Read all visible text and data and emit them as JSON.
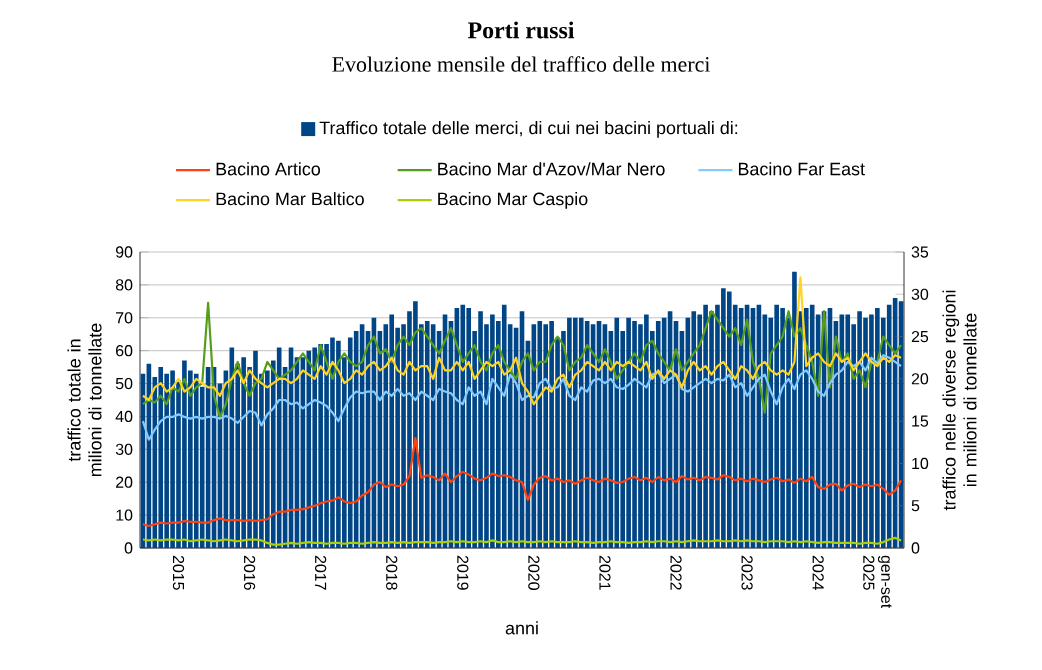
{
  "chart_data": {
    "type": "bar",
    "title": "Porti russi",
    "subtitle": "Evoluzione mensile del traffico delle merci",
    "xlabel": "anni",
    "ylabel": "traffico totale in milioni di tonnellate",
    "y2label": "traffico nelle diverse regioni in milioni di tonnellate",
    "categories": [
      null,
      null,
      null,
      null,
      null,
      null,
      "2015",
      null,
      null,
      null,
      null,
      null,
      null,
      null,
      null,
      null,
      null,
      null,
      "2016",
      null,
      null,
      null,
      null,
      null,
      null,
      null,
      null,
      null,
      null,
      null,
      "2017",
      null,
      null,
      null,
      null,
      null,
      null,
      null,
      null,
      null,
      null,
      null,
      "2018",
      null,
      null,
      null,
      null,
      null,
      null,
      null,
      null,
      null,
      null,
      null,
      "2019",
      null,
      null,
      null,
      null,
      null,
      null,
      null,
      null,
      null,
      null,
      null,
      "2020",
      null,
      null,
      null,
      null,
      null,
      null,
      null,
      null,
      null,
      null,
      null,
      "2021",
      null,
      null,
      null,
      null,
      null,
      null,
      null,
      null,
      null,
      null,
      null,
      "2022",
      null,
      null,
      null,
      null,
      null,
      null,
      null,
      null,
      null,
      null,
      null,
      "2023",
      null,
      null,
      null,
      null,
      null,
      null,
      null,
      null,
      null,
      null,
      null,
      "2024",
      null,
      null,
      null,
      null,
      null,
      null,
      null,
      null,
      null,
      "gen-set 2025",
      null,
      null,
      null,
      null
    ],
    "series": [
      {
        "name": "Traffico totale delle merci, di cui nei bacini portuali di:",
        "axis": "y",
        "color": "#004586",
        "values": [
          53,
          56,
          52,
          55,
          53,
          54,
          51,
          57,
          54,
          53,
          49,
          55,
          55,
          50,
          54,
          61,
          56,
          58,
          55,
          60,
          53,
          54,
          57,
          61,
          55,
          61,
          58,
          58,
          60,
          61,
          62,
          62,
          64,
          63,
          58,
          64,
          66,
          68,
          66,
          70,
          66,
          68,
          71,
          67,
          68,
          72,
          75,
          68,
          69,
          68,
          66,
          71,
          69,
          73,
          74,
          73,
          66,
          72,
          68,
          71,
          69,
          74,
          68,
          67,
          72,
          63,
          68,
          69,
          68,
          69,
          64,
          66,
          70,
          70,
          70,
          69,
          68,
          69,
          68,
          66,
          70,
          66,
          70,
          69,
          68,
          71,
          66,
          69,
          70,
          72,
          69,
          66,
          70,
          72,
          71,
          74,
          72,
          74,
          79,
          78,
          74,
          73,
          74,
          73,
          74,
          71,
          70,
          74,
          73,
          70,
          84,
          72,
          73,
          74,
          71,
          72,
          73,
          69,
          71,
          71,
          68,
          72,
          70,
          71,
          73,
          70,
          74,
          76,
          75
        ]
      },
      {
        "name": "Bacino Artico",
        "type": "line",
        "axis": "y2",
        "color": "#ff420e",
        "values": [
          2.8,
          2.6,
          2.8,
          3.0,
          2.9,
          3.0,
          3.0,
          3.2,
          3.1,
          3.1,
          3.0,
          3.0,
          3.3,
          3.5,
          3.3,
          3.3,
          3.3,
          3.2,
          3.3,
          3.2,
          3.3,
          3.4,
          4.0,
          4.3,
          4.3,
          4.5,
          4.5,
          4.6,
          4.8,
          5.0,
          5.3,
          5.5,
          5.6,
          6.0,
          5.5,
          5.3,
          5.5,
          6.2,
          6.6,
          7.5,
          7.8,
          7.2,
          7.5,
          7.3,
          7.5,
          8.5,
          13.0,
          8.3,
          8.6,
          8.4,
          8.0,
          8.8,
          7.8,
          8.5,
          9.0,
          8.7,
          8.2,
          8.0,
          8.3,
          8.8,
          8.5,
          8.6,
          8.4,
          8.0,
          7.8,
          5.7,
          7.5,
          8.3,
          8.5,
          8.0,
          8.2,
          7.8,
          8.0,
          7.6,
          8.0,
          8.3,
          8.0,
          7.8,
          8.2,
          8.0,
          7.7,
          7.8,
          8.2,
          8.4,
          8.0,
          8.3,
          7.8,
          8.4,
          8.0,
          8.2,
          7.8,
          8.5,
          8.1,
          8.3,
          8.0,
          8.4,
          8.3,
          8.1,
          8.6,
          8.4,
          8.0,
          8.2,
          7.9,
          8.2,
          8.0,
          7.8,
          8.1,
          8.3,
          7.9,
          8.1,
          7.7,
          8.2,
          7.9,
          8.4,
          7.2,
          7.0,
          7.5,
          7.6,
          6.8,
          7.4,
          7.6,
          7.2,
          7.5,
          7.3,
          7.5,
          7.0,
          6.3,
          6.8,
          8.0
        ]
      },
      {
        "name": "Bacino Mar d'Azov/Mar Nero",
        "type": "line",
        "axis": "y2",
        "color": "#579d1c",
        "values": [
          17,
          17.5,
          17.2,
          18,
          17,
          19,
          18.5,
          20,
          18,
          19,
          19.5,
          29,
          18,
          15.5,
          17,
          20,
          22,
          19.5,
          18,
          19.5,
          20,
          22,
          21,
          20,
          20.5,
          21,
          22,
          23,
          22,
          21,
          24,
          22,
          20,
          22,
          23,
          22,
          21.5,
          22,
          24,
          25,
          23,
          23.5,
          22,
          24,
          25,
          24,
          25.5,
          26,
          25,
          24,
          23,
          24.5,
          26,
          24,
          22,
          23,
          24,
          22,
          21,
          23,
          24,
          22,
          21,
          20,
          22,
          23,
          21,
          22,
          22,
          24,
          25,
          24,
          21,
          22,
          22.5,
          24,
          23,
          22,
          23.5,
          22,
          20,
          21,
          22,
          23,
          22,
          24,
          24.5,
          23,
          22,
          21,
          23.5,
          21,
          22,
          23,
          24,
          26,
          28,
          27,
          26,
          25,
          26,
          24,
          27,
          22,
          20,
          16,
          23,
          24,
          25,
          28,
          25,
          26,
          24,
          22,
          18,
          28,
          19,
          25,
          22,
          23,
          20,
          21,
          19,
          22,
          22,
          25,
          24,
          23,
          24
        ]
      },
      {
        "name": "Bacino Far East",
        "type": "line",
        "axis": "y2",
        "color": "#83caff",
        "values": [
          15,
          12.8,
          14,
          15,
          15.5,
          15.5,
          15.8,
          15.5,
          15.3,
          15.5,
          15.3,
          15.5,
          15.5,
          15.3,
          15.6,
          15.3,
          14.8,
          15.5,
          16.2,
          16,
          14.5,
          15.8,
          16.5,
          17.5,
          17.5,
          17,
          17.2,
          16.5,
          17,
          17.5,
          17.2,
          16.8,
          16,
          15,
          16.5,
          17.8,
          18.5,
          18.3,
          18.5,
          18.5,
          17.5,
          18.5,
          18,
          18.8,
          18,
          18.3,
          17.5,
          18.5,
          18,
          17.5,
          18.8,
          18.5,
          18.3,
          17.5,
          17,
          19,
          18,
          18.5,
          17,
          20,
          19,
          18,
          20.5,
          19.5,
          17.5,
          18,
          17.8,
          19.5,
          20,
          18.8,
          19,
          20,
          18,
          17.5,
          19,
          18.5,
          19.8,
          20,
          19.5,
          20,
          19,
          18.8,
          19.3,
          20,
          19.5,
          19,
          20.5,
          20.8,
          19.5,
          20,
          20.5,
          18.8,
          18.5,
          19,
          19.5,
          20,
          19.5,
          20,
          19.8,
          20.5,
          19,
          19.5,
          18,
          19,
          20,
          20.5,
          18.5,
          17,
          19,
          20,
          18.8,
          20.5,
          21,
          20,
          18.5,
          18,
          19.5,
          20.5,
          21,
          22,
          21.5,
          22,
          21,
          22.5,
          21.8,
          22.8,
          22.5,
          22,
          21.5
        ]
      },
      {
        "name": "Bacino Mar Baltico",
        "type": "line",
        "axis": "y2",
        "color": "#ffd320",
        "values": [
          18,
          17.5,
          19,
          19.5,
          18.5,
          19,
          20,
          18.5,
          19,
          20,
          19.5,
          19,
          19,
          18,
          19.5,
          20,
          21,
          19.5,
          21,
          20,
          19.5,
          19,
          19.5,
          20,
          20,
          19.5,
          20,
          21,
          20.5,
          20,
          21.5,
          20.5,
          22,
          21,
          19.5,
          20,
          21,
          20.5,
          21.5,
          22,
          21,
          21.5,
          22.5,
          21,
          20.5,
          22,
          21,
          21.5,
          21.5,
          20,
          22.5,
          21,
          21,
          22,
          21,
          22,
          20,
          21,
          22,
          21.5,
          22,
          20.5,
          21,
          22.5,
          19.5,
          18.5,
          17,
          18,
          19,
          18.5,
          20,
          20.5,
          19,
          20.5,
          21,
          22,
          21.5,
          21,
          22,
          21,
          22,
          21.5,
          22,
          21.5,
          21,
          22,
          20,
          21,
          20,
          21,
          20.5,
          19,
          21,
          22,
          21,
          21.5,
          20.5,
          21.5,
          22,
          21,
          20,
          21.5,
          21,
          20,
          21.5,
          22,
          21,
          20.5,
          21,
          20.5,
          22,
          32,
          21.5,
          22.5,
          23,
          22,
          21.5,
          23,
          22,
          22.5,
          21,
          22,
          23,
          22,
          21.5,
          22.5,
          22,
          22.8,
          22.5
        ]
      },
      {
        "name": "Bacino Mar Caspio",
        "type": "line",
        "axis": "y2",
        "color": "#aecf00",
        "values": [
          1.0,
          0.9,
          1.0,
          0.9,
          1.0,
          1.0,
          0.9,
          1.0,
          0.8,
          0.9,
          1.0,
          0.9,
          0.8,
          0.9,
          1.0,
          0.9,
          0.8,
          0.9,
          1.0,
          1.0,
          0.9,
          0.6,
          0.4,
          0.4,
          0.5,
          0.6,
          0.5,
          0.6,
          0.7,
          0.6,
          0.6,
          0.5,
          0.6,
          0.6,
          0.5,
          0.6,
          0.6,
          0.5,
          0.6,
          0.7,
          0.6,
          0.6,
          0.7,
          0.6,
          0.7,
          0.6,
          0.7,
          0.7,
          0.7,
          0.6,
          0.7,
          0.7,
          0.8,
          0.7,
          0.8,
          0.7,
          0.7,
          0.8,
          0.7,
          0.9,
          0.7,
          0.7,
          0.8,
          0.7,
          0.8,
          0.7,
          0.7,
          0.8,
          0.7,
          0.8,
          0.7,
          0.7,
          0.7,
          0.8,
          0.7,
          0.7,
          0.6,
          0.7,
          0.7,
          0.8,
          0.7,
          0.7,
          0.6,
          0.7,
          0.7,
          0.8,
          0.7,
          0.8,
          0.8,
          0.7,
          0.8,
          0.7,
          0.8,
          0.9,
          0.8,
          0.8,
          0.8,
          0.9,
          0.8,
          0.8,
          0.9,
          0.8,
          0.9,
          0.8,
          0.8,
          0.7,
          0.8,
          0.8,
          0.8,
          0.7,
          0.8,
          0.7,
          0.8,
          0.7,
          0.6,
          0.7,
          0.7,
          0.6,
          0.6,
          0.6,
          0.6,
          0.5,
          0.6,
          0.6,
          0.5,
          0.7,
          1.0,
          1.2,
          0.9
        ]
      }
    ],
    "ylim": [
      0,
      90
    ],
    "yticks": [
      0,
      10,
      20,
      30,
      40,
      50,
      60,
      70,
      80,
      90
    ],
    "y2lim": [
      0,
      35
    ],
    "y2ticks": [
      0,
      5,
      10,
      15,
      20,
      25,
      30,
      35
    ],
    "grid": "y",
    "legend": "top"
  }
}
